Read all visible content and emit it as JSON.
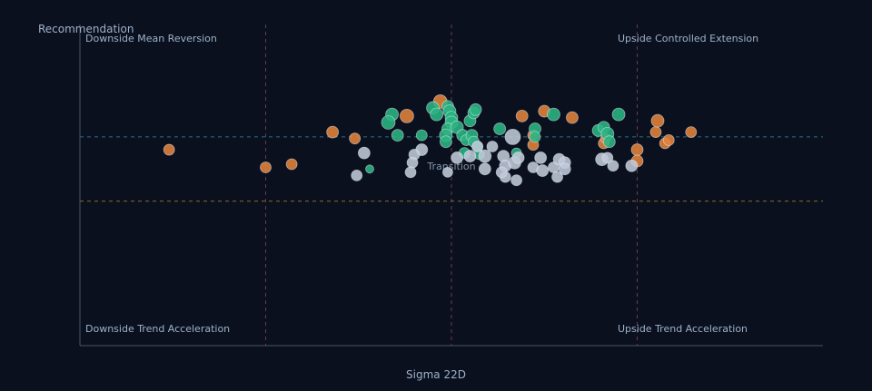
{
  "chart_data": {
    "type": "scatter",
    "title": "",
    "xlabel": "Sigma 22D",
    "ylabel": "Recommendation",
    "xlim": [
      -2,
      2
    ],
    "ylim": [
      -1,
      1
    ],
    "grid": false,
    "x_reference_lines": [
      -1,
      0,
      1
    ],
    "y_reference_lines": [
      {
        "y": 0.3,
        "color": "#2b6f8a"
      },
      {
        "y": -0.1,
        "color": "#8a6a2c"
      }
    ],
    "quadrant_labels": {
      "top_left": "Downside Mean Reversion",
      "top_right": "Upside Controlled Extension",
      "bottom_left": "Downside Trend Acceleration",
      "bottom_right": "Upside Trend Acceleration"
    },
    "center_label": "Transition",
    "series": [
      {
        "color": "#e4833c",
        "points": [
          [
            -1.52,
            0.22,
            6
          ],
          [
            -1.0,
            0.11,
            6
          ],
          [
            -0.86,
            0.13,
            6
          ],
          [
            -0.64,
            0.33,
            6.5
          ],
          [
            -0.52,
            0.29,
            6
          ],
          [
            -0.06,
            0.52,
            7.5
          ],
          [
            -0.24,
            0.43,
            7.5
          ],
          [
            0.38,
            0.43,
            6.5
          ],
          [
            0.5,
            0.46,
            6.5
          ],
          [
            0.65,
            0.42,
            6.5
          ],
          [
            0.44,
            0.31,
            6
          ],
          [
            0.44,
            0.25,
            6
          ],
          [
            0.82,
            0.26,
            6
          ],
          [
            0.83,
            0.29,
            5.5
          ],
          [
            1.1,
            0.33,
            6
          ],
          [
            1.0,
            0.22,
            6.5
          ],
          [
            1.0,
            0.15,
            6.5
          ],
          [
            1.11,
            0.4,
            7
          ],
          [
            1.15,
            0.26,
            6
          ],
          [
            1.17,
            0.28,
            6
          ],
          [
            1.29,
            0.33,
            6
          ]
        ]
      },
      {
        "color": "#2bb583",
        "points": [
          [
            -0.32,
            0.44,
            7
          ],
          [
            -0.34,
            0.39,
            7.5
          ],
          [
            -0.29,
            0.31,
            6.5
          ],
          [
            -0.1,
            0.48,
            7
          ],
          [
            -0.08,
            0.44,
            7
          ],
          [
            -0.02,
            0.49,
            6.5
          ],
          [
            -0.01,
            0.46,
            7
          ],
          [
            0.0,
            0.42,
            7
          ],
          [
            0.0,
            0.39,
            7
          ],
          [
            -0.02,
            0.35,
            6.5
          ],
          [
            -0.03,
            0.31,
            7
          ],
          [
            -0.03,
            0.27,
            6.5
          ],
          [
            0.03,
            0.36,
            7
          ],
          [
            0.06,
            0.31,
            6.5
          ],
          [
            0.08,
            0.28,
            6
          ],
          [
            0.1,
            0.4,
            6.5
          ],
          [
            0.12,
            0.45,
            6.5
          ],
          [
            0.13,
            0.47,
            6.5
          ],
          [
            0.11,
            0.31,
            6.5
          ],
          [
            0.12,
            0.27,
            6
          ],
          [
            0.07,
            0.2,
            6
          ],
          [
            0.14,
            0.24,
            6
          ],
          [
            0.15,
            0.19,
            5.5
          ],
          [
            -0.16,
            0.31,
            6
          ],
          [
            0.26,
            0.35,
            6.5
          ],
          [
            0.35,
            0.2,
            5.5
          ],
          [
            0.45,
            0.35,
            6.5
          ],
          [
            0.45,
            0.3,
            6
          ],
          [
            0.55,
            0.44,
            7
          ],
          [
            0.79,
            0.34,
            6.5
          ],
          [
            0.82,
            0.36,
            6.5
          ],
          [
            0.84,
            0.32,
            7
          ],
          [
            0.85,
            0.27,
            6.5
          ],
          [
            0.9,
            0.44,
            7
          ],
          [
            -0.44,
            0.1,
            4.5
          ]
        ]
      },
      {
        "color": "#c0cad9",
        "points": [
          [
            -0.47,
            0.2,
            6.5
          ],
          [
            -0.51,
            0.06,
            6
          ],
          [
            -0.16,
            0.22,
            6.5
          ],
          [
            -0.2,
            0.19,
            6
          ],
          [
            -0.21,
            0.14,
            6
          ],
          [
            -0.22,
            0.08,
            6
          ],
          [
            -0.02,
            0.08,
            5.5
          ],
          [
            0.03,
            0.17,
            6.5
          ],
          [
            0.1,
            0.18,
            6.5
          ],
          [
            0.14,
            0.24,
            6
          ],
          [
            0.18,
            0.18,
            7
          ],
          [
            0.22,
            0.24,
            6
          ],
          [
            0.18,
            0.1,
            6.5
          ],
          [
            0.28,
            0.18,
            6.5
          ],
          [
            0.29,
            0.12,
            6.5
          ],
          [
            0.34,
            0.14,
            7
          ],
          [
            0.36,
            0.17,
            6.5
          ],
          [
            0.33,
            0.3,
            8.5
          ],
          [
            0.29,
            0.05,
            6
          ],
          [
            0.27,
            0.08,
            6
          ],
          [
            0.35,
            0.03,
            6
          ],
          [
            0.44,
            0.11,
            6
          ],
          [
            0.48,
            0.17,
            6.5
          ],
          [
            0.49,
            0.09,
            6.5
          ],
          [
            0.55,
            0.11,
            6
          ],
          [
            0.58,
            0.16,
            6.5
          ],
          [
            0.61,
            0.14,
            6.5
          ],
          [
            0.61,
            0.1,
            6.5
          ],
          [
            0.57,
            0.05,
            6
          ],
          [
            0.81,
            0.16,
            7
          ],
          [
            0.84,
            0.17,
            6
          ],
          [
            0.87,
            0.12,
            6
          ],
          [
            0.97,
            0.12,
            6.5
          ]
        ]
      }
    ]
  }
}
